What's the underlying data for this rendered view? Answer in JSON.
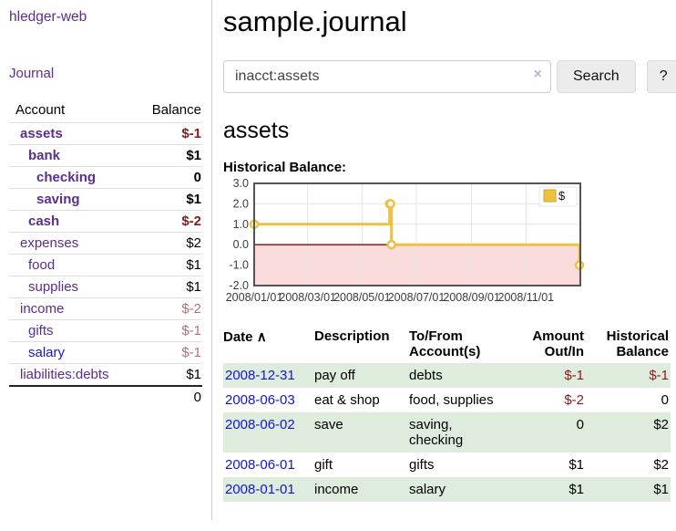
{
  "app": {
    "title": "hledger-web",
    "nav": [
      {
        "label": "Journal"
      }
    ]
  },
  "sidebar": {
    "accounts_table": {
      "headers": [
        "Account",
        "Balance"
      ],
      "rows": [
        {
          "account": "assets",
          "balance": "$-1",
          "depth": 1,
          "bold": true
        },
        {
          "account": "bank",
          "balance": "$1",
          "depth": 2,
          "bold": true
        },
        {
          "account": "checking",
          "balance": "0",
          "depth": 3,
          "bold": true
        },
        {
          "account": "saving",
          "balance": "$1",
          "depth": 3,
          "bold": true
        },
        {
          "account": "cash",
          "balance": "$-2",
          "depth": 2,
          "bold": true
        },
        {
          "account": "expenses",
          "balance": "$2",
          "depth": 1,
          "bold": false
        },
        {
          "account": "food",
          "balance": "$1",
          "depth": 2,
          "bold": false
        },
        {
          "account": "supplies",
          "balance": "$1",
          "depth": 2,
          "bold": false
        },
        {
          "account": "income",
          "balance": "$-2",
          "depth": 1,
          "bold": false
        },
        {
          "account": "gifts",
          "balance": "$-1",
          "depth": 2,
          "bold": false
        },
        {
          "account": "salary",
          "balance": "$-1",
          "depth": 2,
          "bold": false,
          "link": "blue"
        },
        {
          "account": "liabilities:debts",
          "balance": "$1",
          "depth": 1,
          "bold": false
        }
      ],
      "total": "0"
    }
  },
  "header": {
    "title": "sample.journal"
  },
  "search": {
    "value": "inacct:assets",
    "clear_icon": "×",
    "button_label": "Search",
    "help_label": "?"
  },
  "account_page": {
    "title": "assets",
    "chart_label": "Historical Balance:"
  },
  "chart_data": {
    "type": "line",
    "step": true,
    "title": "Historical Balance:",
    "series": [
      {
        "name": "$",
        "points": [
          [
            "2008-01-01",
            1
          ],
          [
            "2008-06-01",
            2
          ],
          [
            "2008-06-02",
            2
          ],
          [
            "2008-06-03",
            0
          ],
          [
            "2008-12-31",
            -1
          ]
        ]
      }
    ],
    "x_range": [
      "2008-01-01",
      "2009-01-01"
    ],
    "x_ticks": [
      "2008/01/01",
      "2008/03/01",
      "2008/05/01",
      "2008/07/01",
      "2008/09/01",
      "2008/11/01"
    ],
    "y_ticks": [
      3.0,
      2.0,
      1.0,
      0.0,
      -1.0,
      -2.0
    ],
    "ylim": [
      -2,
      3
    ],
    "grid": true,
    "legend_position": "top-right",
    "colors": {
      "line": "#edc240",
      "negative_region": "#fbdcdc",
      "zero_line": "#8b0000",
      "border": "#545454"
    }
  },
  "register_table": {
    "headers": [
      "Date",
      "Description",
      "To/From Account(s)",
      "Amount Out/In",
      "Historical Balance"
    ],
    "sort_indicator": "∧",
    "rows": [
      {
        "date": "2008-12-31",
        "description": "pay off",
        "accounts": "debts",
        "amount": "$-1",
        "balance": "$-1"
      },
      {
        "date": "2008-06-03",
        "description": "eat & shop",
        "accounts": "food, supplies",
        "amount": "$-2",
        "balance": "0"
      },
      {
        "date": "2008-06-02",
        "description": "save",
        "accounts": "saving, checking",
        "amount": "0",
        "balance": "$2"
      },
      {
        "date": "2008-06-01",
        "description": "gift",
        "accounts": "gifts",
        "amount": "$1",
        "balance": "$2"
      },
      {
        "date": "2008-01-01",
        "description": "income",
        "accounts": "salary",
        "amount": "$1",
        "balance": "$1"
      }
    ]
  }
}
